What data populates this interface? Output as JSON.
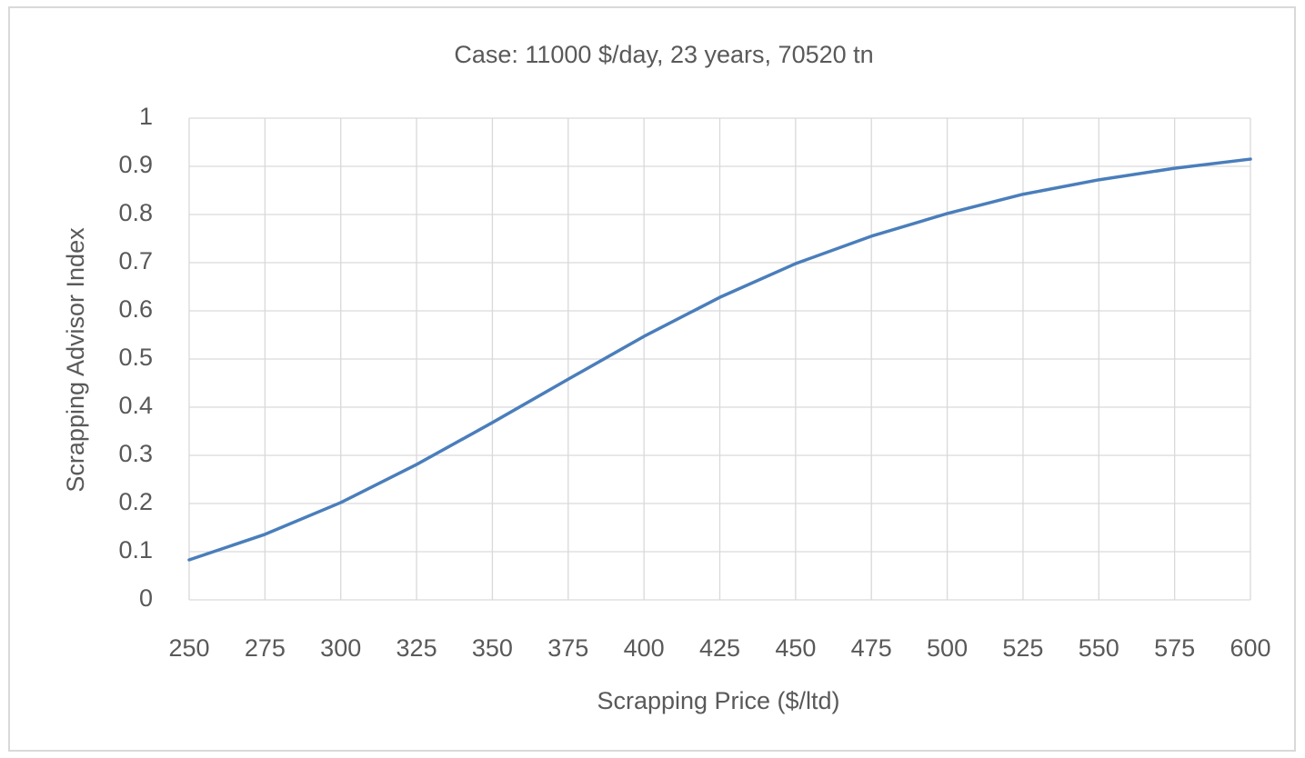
{
  "chart_data": {
    "type": "line",
    "title": "Case: 11000 $/day, 23 years, 70520 tn",
    "x_label": "Scrapping Price ($/ltd)",
    "y_label": "Scrapping Advisor Index",
    "x": [
      250,
      275,
      300,
      325,
      350,
      375,
      400,
      425,
      450,
      475,
      500,
      525,
      550,
      575,
      600
    ],
    "series": [
      {
        "name": "Scrapping Advisor Index",
        "color": "#4a7ebb",
        "values": [
          0.083,
          0.136,
          0.202,
          0.281,
          0.368,
          0.458,
          0.547,
          0.628,
          0.698,
          0.755,
          0.802,
          0.842,
          0.872,
          0.896,
          0.915
        ]
      }
    ],
    "xlim": [
      250,
      600
    ],
    "xticks": [
      250,
      275,
      300,
      325,
      350,
      375,
      400,
      425,
      450,
      475,
      500,
      525,
      550,
      575,
      600
    ],
    "ylim": [
      0,
      1
    ],
    "yticks": [
      0,
      0.1,
      0.2,
      0.3,
      0.4,
      0.5,
      0.6,
      0.7,
      0.8,
      0.9,
      1
    ],
    "grid": true
  }
}
